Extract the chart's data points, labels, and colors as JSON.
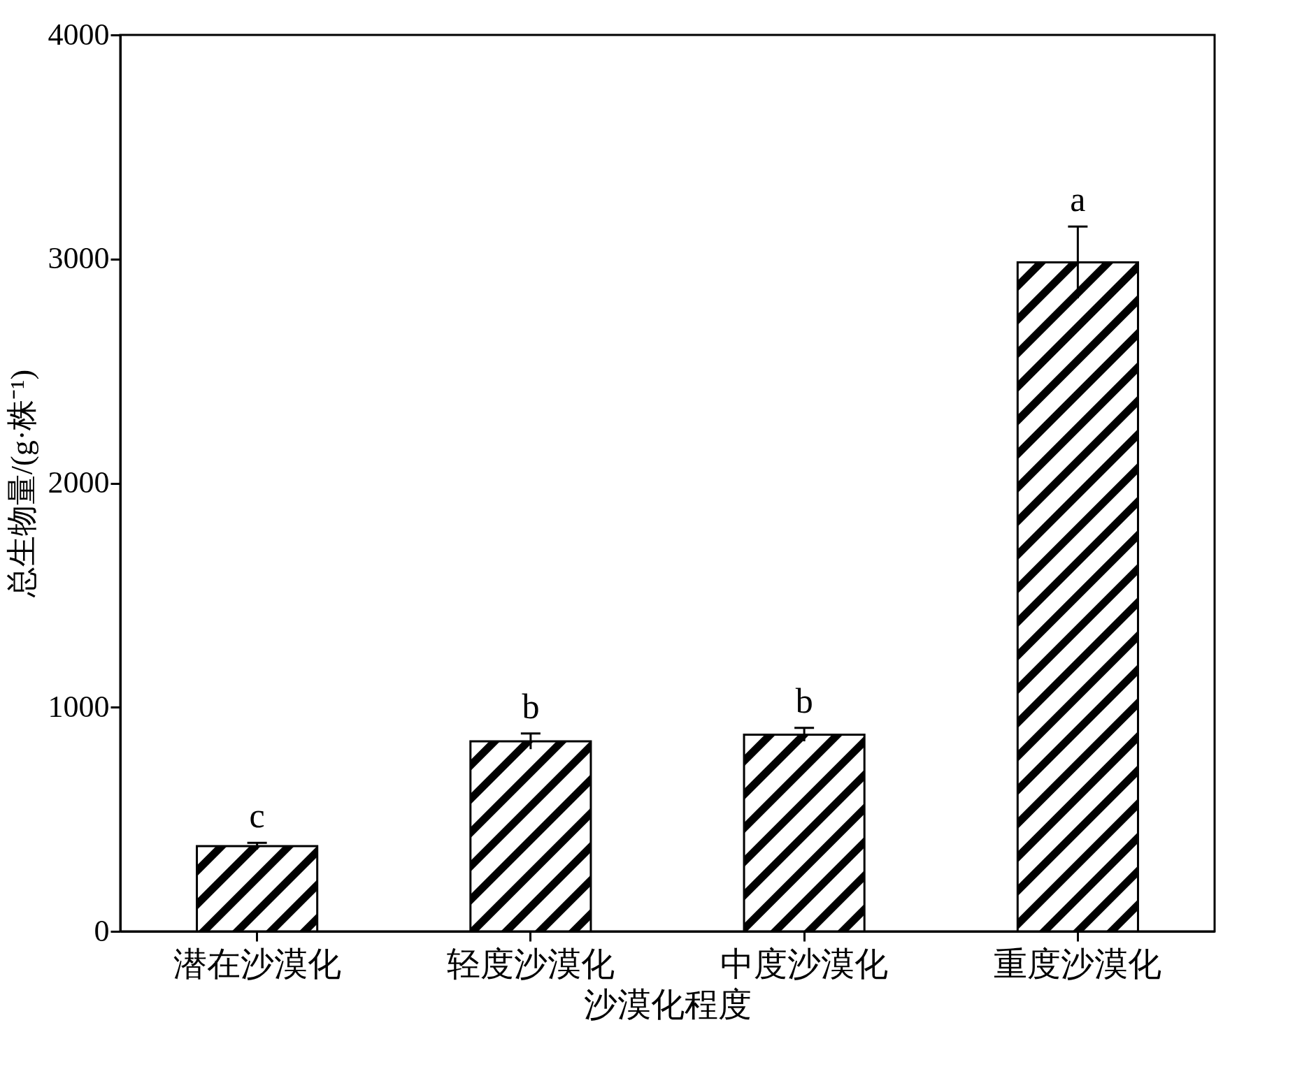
{
  "chart_data": {
    "type": "bar",
    "xlabel": "沙漠化程度",
    "ylabel": "总生物量/(g·株⁻¹)",
    "categories": [
      "潜在沙漠化",
      "轻度沙漠化",
      "中度沙漠化",
      "重度沙漠化"
    ],
    "values": [
      380,
      848,
      878,
      2985
    ],
    "errors": [
      15,
      35,
      30,
      160
    ],
    "color": "#000000",
    "ylim": [
      0,
      4000
    ],
    "yticks": [
      0,
      1000,
      2000,
      3000,
      4000
    ],
    "annotations": [
      "c",
      "b",
      "b",
      "a"
    ],
    "grid": false
  }
}
